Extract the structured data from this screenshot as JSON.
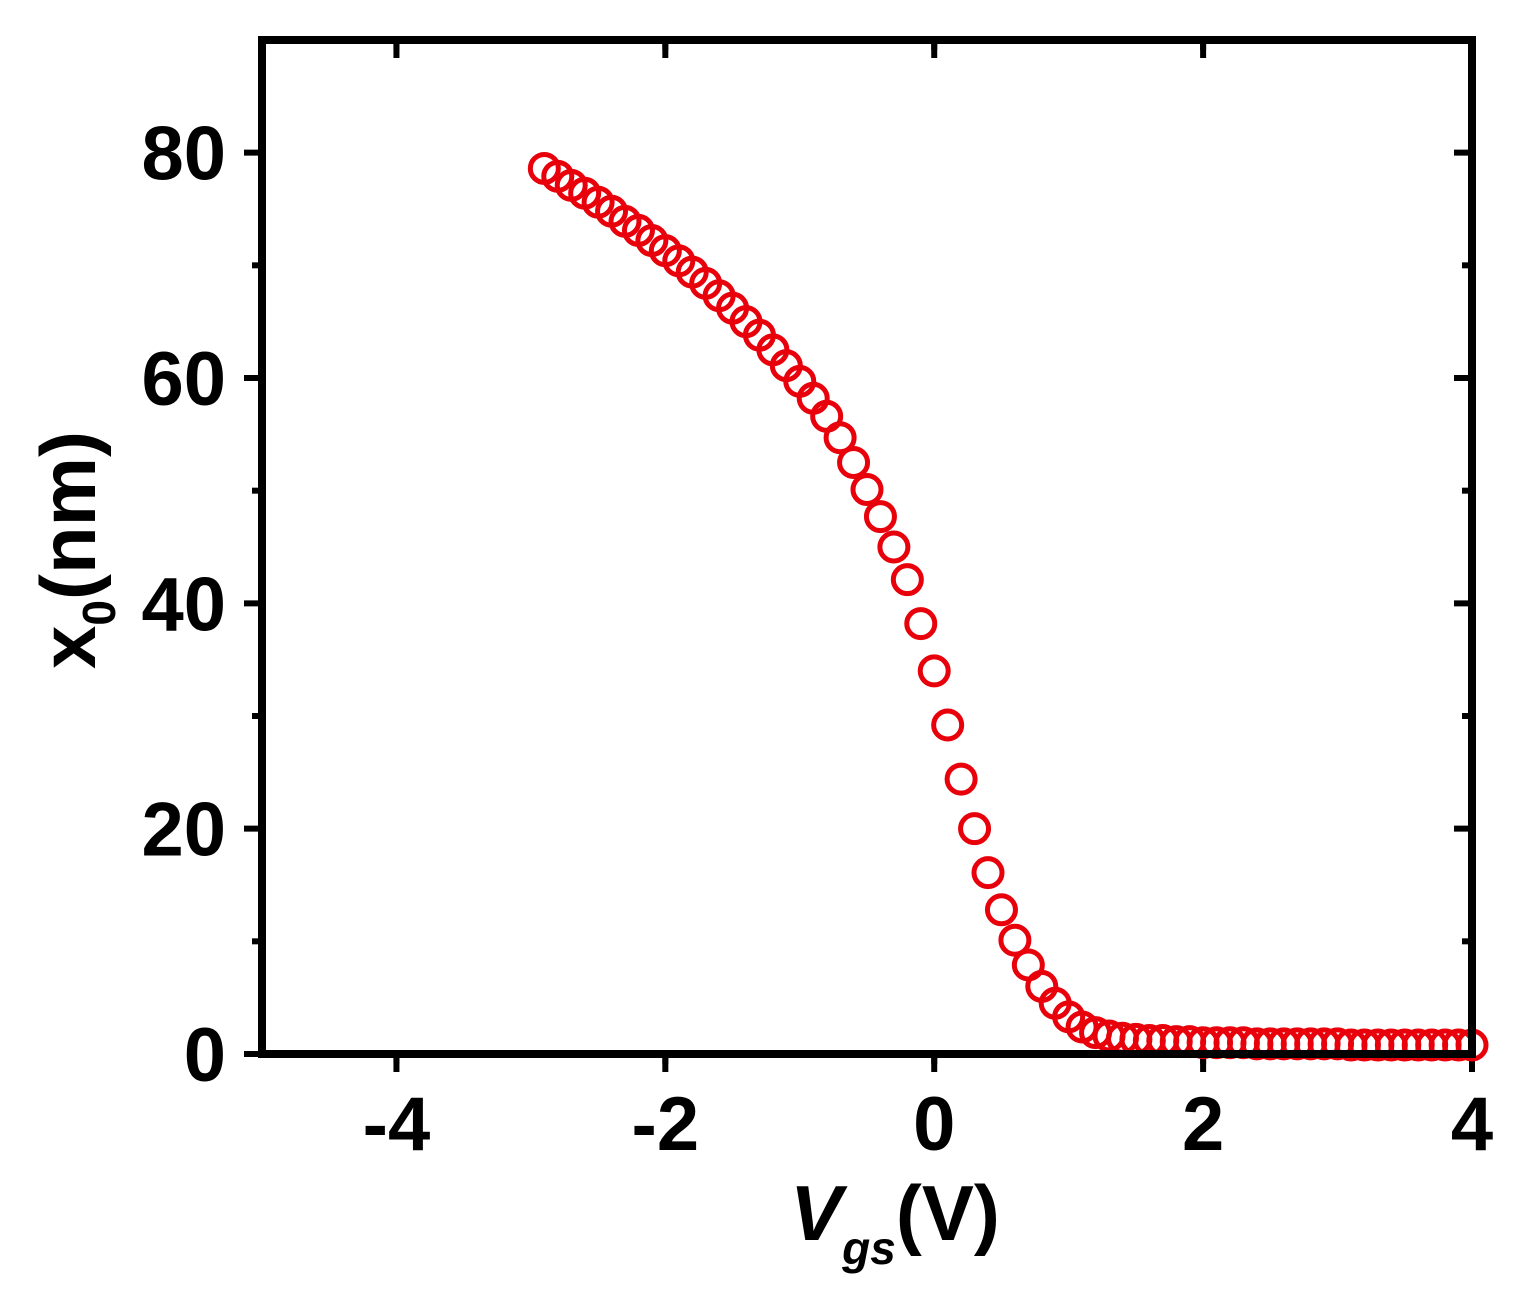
{
  "chart_data": {
    "type": "scatter",
    "xlabel": {
      "main": "V",
      "sub": "gs",
      "tail": "(V)"
    },
    "ylabel": {
      "main": "x",
      "sub": "0",
      "tail": "(nm)"
    },
    "xlim": [
      -5,
      4
    ],
    "ylim": [
      0,
      90
    ],
    "x_ticks": [
      -4,
      -2,
      0,
      2,
      4
    ],
    "x_tick_labels": [
      "-4",
      "-2",
      "0",
      "2",
      "4"
    ],
    "y_ticks": [
      0,
      20,
      40,
      60,
      80
    ],
    "y_tick_labels": [
      "0",
      "20",
      "40",
      "60",
      "80"
    ],
    "marker": "open-circle",
    "marker_color": "#e8000b",
    "grid": false,
    "legend": "none",
    "series": [
      {
        "x": [
          -2.9,
          -2.8,
          -2.7,
          -2.6,
          -2.5,
          -2.4,
          -2.3,
          -2.2,
          -2.1,
          -2.0,
          -1.9,
          -1.8,
          -1.7,
          -1.6,
          -1.5,
          -1.4,
          -1.3,
          -1.2,
          -1.1,
          -1.0,
          -0.9,
          -0.8,
          -0.7,
          -0.6,
          -0.5,
          -0.4,
          -0.3,
          -0.2,
          -0.1,
          0.0,
          0.1,
          0.2,
          0.3,
          0.4,
          0.5,
          0.6,
          0.7,
          0.8,
          0.9,
          1.0,
          1.1,
          1.2,
          1.3,
          1.4,
          1.5,
          1.6,
          1.7,
          1.8,
          1.9,
          2.0,
          2.1,
          2.2,
          2.3,
          2.4,
          2.5,
          2.6,
          2.7,
          2.8,
          2.9,
          3.0,
          3.1,
          3.2,
          3.3,
          3.4,
          3.5,
          3.6,
          3.7,
          3.8,
          3.9,
          4.0
        ],
        "y": [
          78.6,
          77.9,
          77.1,
          76.4,
          75.6,
          74.8,
          73.9,
          73.1,
          72.2,
          71.3,
          70.4,
          69.4,
          68.4,
          67.3,
          66.2,
          65.0,
          63.8,
          62.5,
          61.1,
          59.7,
          58.2,
          56.6,
          54.7,
          52.5,
          50.1,
          47.7,
          45.0,
          42.1,
          38.2,
          34.0,
          29.2,
          24.4,
          20.0,
          16.1,
          12.8,
          10.1,
          7.9,
          6.0,
          4.5,
          3.3,
          2.4,
          1.9,
          1.6,
          1.4,
          1.3,
          1.2,
          1.2,
          1.1,
          1.1,
          1.0,
          1.0,
          1.0,
          1.0,
          0.9,
          0.9,
          0.9,
          0.9,
          0.9,
          0.9,
          0.9,
          0.8,
          0.8,
          0.8,
          0.8,
          0.8,
          0.8,
          0.8,
          0.8,
          0.8,
          0.8
        ]
      }
    ]
  }
}
